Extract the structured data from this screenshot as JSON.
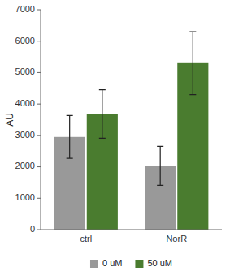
{
  "chart_data": {
    "type": "bar",
    "categories": [
      "ctrl",
      "NorR"
    ],
    "series": [
      {
        "name": "0 uM",
        "color": "#999999",
        "values": [
          2950,
          2030
        ],
        "errors": [
          680,
          620
        ]
      },
      {
        "name": "50 uM",
        "color": "#4a7c2f",
        "values": [
          3680,
          5300
        ],
        "errors": [
          770,
          1000
        ]
      }
    ],
    "y_label": "AU",
    "ylim": [
      0,
      7000
    ],
    "yticks": [
      0,
      1000,
      2000,
      3000,
      4000,
      5000,
      6000,
      7000
    ],
    "grid": false,
    "legend": "bottom"
  }
}
